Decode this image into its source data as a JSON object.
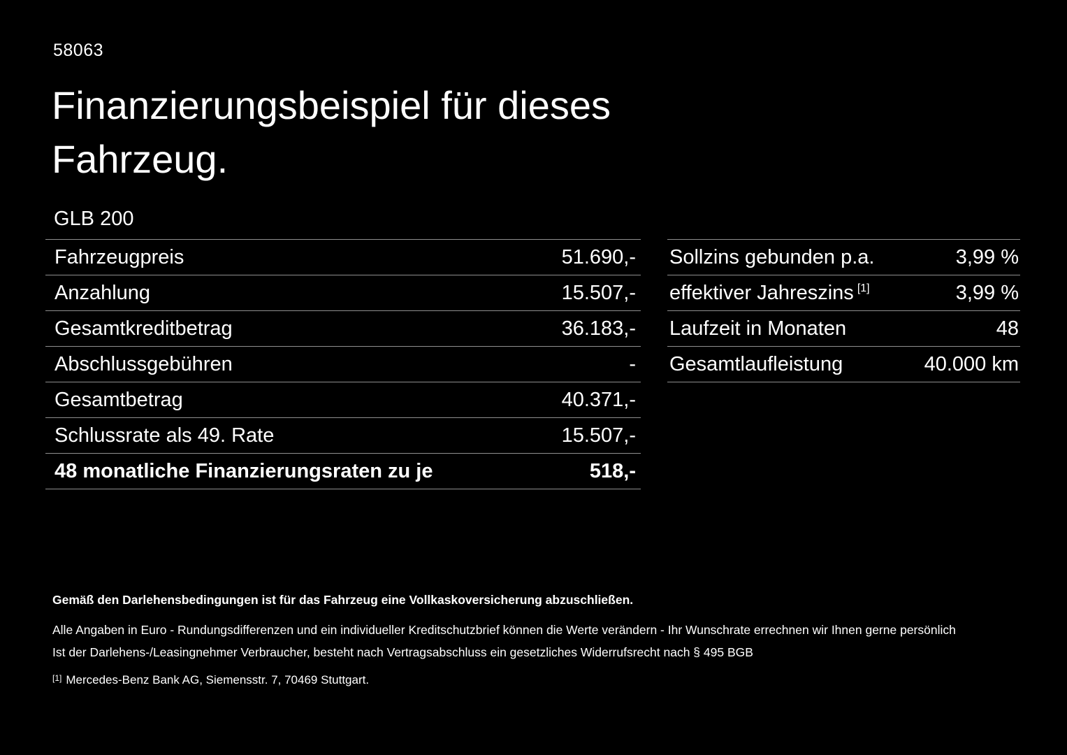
{
  "colors": {
    "background": "#000000",
    "text": "#ffffff",
    "divider": "#8f8f8f"
  },
  "header": {
    "vehicle_id": "58063",
    "title": "Finanzierungsbeispiel für dieses Fahrzeug.",
    "model": "GLB 200"
  },
  "left_table": {
    "rows": [
      {
        "label": "Fahrzeugpreis",
        "value": "51.690,-"
      },
      {
        "label": "Anzahlung",
        "value": "15.507,-"
      },
      {
        "label": "Gesamtkreditbetrag",
        "value": "36.183,-"
      },
      {
        "label": "Abschlussgebühren",
        "value": "-"
      },
      {
        "label": "Gesamtbetrag",
        "value": "40.371,-"
      },
      {
        "label": "Schlussrate als 49. Rate",
        "value": "15.507,-"
      },
      {
        "label": "48 monatliche Finanzierungsraten zu je",
        "value": "518,-"
      }
    ]
  },
  "right_table": {
    "rows": [
      {
        "label": "Sollzins gebunden p.a.",
        "sup": "",
        "value": "3,99 %"
      },
      {
        "label": "effektiver Jahreszins",
        "sup": "[1]",
        "value": "3,99 %"
      },
      {
        "label": "Laufzeit in Monaten",
        "sup": "",
        "value": "48"
      },
      {
        "label": "Gesamtlaufleistung",
        "sup": "",
        "value": "40.000 km"
      }
    ]
  },
  "footnotes": {
    "insurance_note": "Gemäß den Darlehensbedingungen ist für das Fahrzeug eine Vollkaskoversicherung abzuschließen.",
    "euro_note": "Alle Angaben in Euro - Rundungsdifferenzen und ein individueller Kreditschutzbrief können die Werte verändern - Ihr Wunschrate errechnen wir Ihnen gerne persönlich",
    "withdrawal_note": "Ist der Darlehens-/Leasingnehmer Verbraucher, besteht nach Vertragsabschluss ein gesetzliches Widerrufsrecht nach § 495 BGB",
    "ref_marker": "[1]",
    "ref_text": "Mercedes-Benz Bank AG, Siemensstr. 7, 70469 Stuttgart."
  }
}
